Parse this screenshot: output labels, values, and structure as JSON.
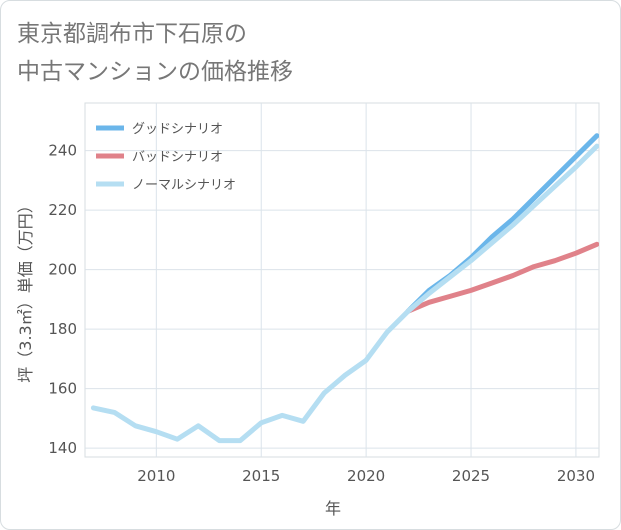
{
  "title_lines": [
    "東京都調布市下石原の",
    "中古マンションの価格推移"
  ],
  "chart_data": {
    "type": "line",
    "title": "東京都調布市下石原の中古マンションの価格推移",
    "xlabel": "年",
    "ylabel": "坪（3.3㎡）単価（万円）",
    "xlim": [
      2006.6,
      2031.1
    ],
    "ylim": [
      137,
      256
    ],
    "x_ticks": [
      2010,
      2015,
      2020,
      2025,
      2030
    ],
    "y_ticks": [
      140,
      160,
      180,
      200,
      220,
      240
    ],
    "grid": true,
    "legend_position": "top-left",
    "series": [
      {
        "name": "グッドシナリオ",
        "color": "#6bb6ea",
        "x": [
          2022,
          2023,
          2024,
          2025,
          2026,
          2027,
          2028,
          2029,
          2030,
          2031
        ],
        "y": [
          186,
          193,
          198,
          204,
          211,
          217,
          224,
          231,
          238,
          245
        ]
      },
      {
        "name": "バッドシナリオ",
        "color": "#e0828a",
        "x": [
          2022,
          2023,
          2024,
          2025,
          2026,
          2027,
          2028,
          2029,
          2030,
          2031
        ],
        "y": [
          186,
          189,
          191,
          193,
          195.5,
          198,
          201,
          203,
          205.5,
          208.5
        ]
      },
      {
        "name": "ノーマルシナリオ",
        "color": "#b5def2",
        "x": [
          2007,
          2008,
          2009,
          2010,
          2011,
          2012,
          2013,
          2014,
          2015,
          2016,
          2017,
          2018,
          2019,
          2020,
          2021,
          2022,
          2023,
          2024,
          2025,
          2026,
          2027,
          2028,
          2029,
          2030,
          2031
        ],
        "y": [
          153.5,
          152,
          147.5,
          145.5,
          143,
          147.5,
          142.5,
          142.5,
          148.5,
          151,
          149,
          158.5,
          164.5,
          169.5,
          179,
          186,
          192,
          197.5,
          203,
          209,
          215,
          221.5,
          228,
          234.5,
          241.5
        ]
      }
    ]
  }
}
